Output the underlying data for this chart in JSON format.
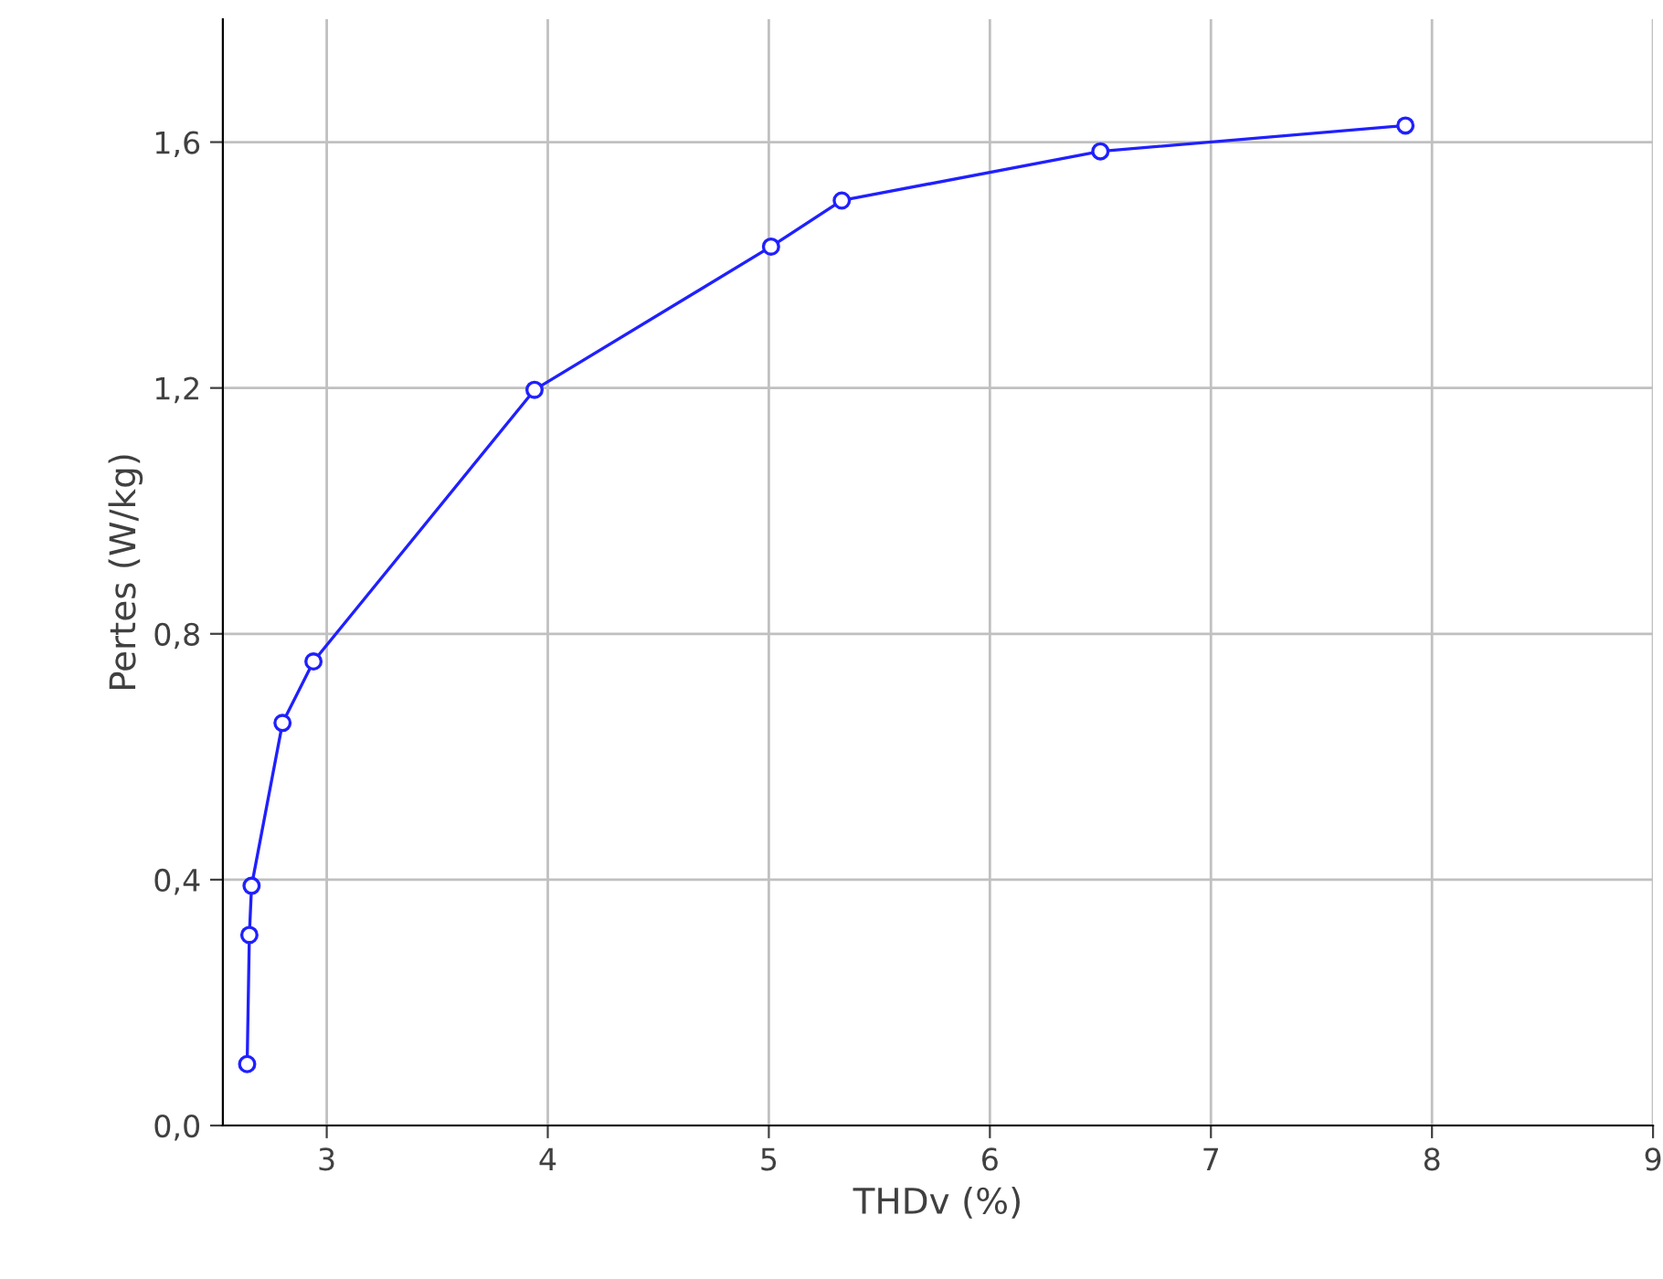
{
  "chart_data": {
    "type": "line",
    "xlabel": "THDv (%)",
    "ylabel": "Pertes (W/kg)",
    "x": [
      2.64,
      2.65,
      2.66,
      2.8,
      2.94,
      3.94,
      5.01,
      5.33,
      6.5,
      7.88
    ],
    "series": [
      {
        "color": "#2020ff",
        "values": [
          0.1,
          0.31,
          0.39,
          0.655,
          0.755,
          1.197,
          1.43,
          1.505,
          1.585,
          1.627
        ]
      }
    ],
    "xlim": [
      2.53,
      9
    ],
    "xticks": [
      3,
      4,
      5,
      6,
      7,
      8,
      9
    ],
    "ylim": [
      0,
      1.8
    ],
    "yticks": [
      {
        "value": 0,
        "label": "0,0"
      },
      {
        "value": 0.4,
        "label": "0,4"
      },
      {
        "value": 0.8,
        "label": "0,8"
      },
      {
        "value": 1.2,
        "label": "1,2"
      },
      {
        "value": 1.6,
        "label": "1,6"
      }
    ],
    "grid": true,
    "marker": "circle",
    "line_style": "solid"
  }
}
